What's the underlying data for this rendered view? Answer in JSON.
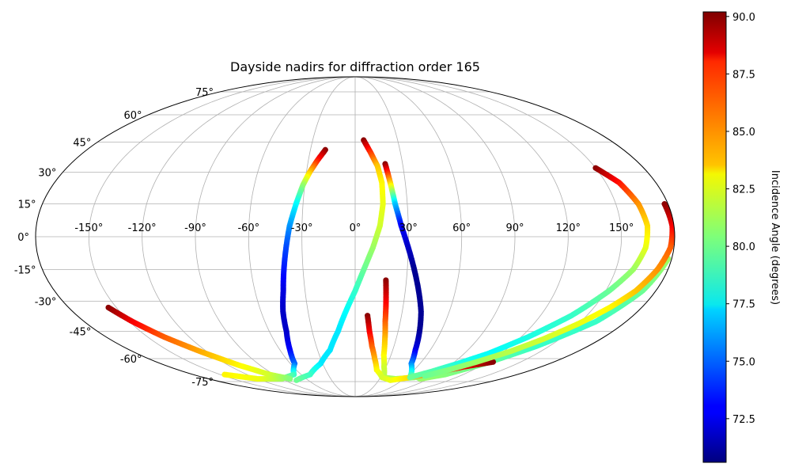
{
  "chart_data": {
    "type": "scatter",
    "projection": "mollweide",
    "title": "Dayside nadirs for diffraction order 165",
    "x_tick_labels": [
      "-150°",
      "-120°",
      "-90°",
      "-60°",
      "-30°",
      "0°",
      "30°",
      "60°",
      "90°",
      "120°",
      "150°"
    ],
    "x_tick_values": [
      -150,
      -120,
      -90,
      -60,
      -30,
      0,
      30,
      60,
      90,
      120,
      150
    ],
    "y_tick_labels": [
      "75°",
      "60°",
      "45°",
      "30°",
      "15°",
      "0°",
      "-15°",
      "-30°",
      "-45°",
      "-60°",
      "-75°"
    ],
    "y_tick_values": [
      75,
      60,
      45,
      30,
      15,
      0,
      -15,
      -30,
      -45,
      -60,
      -75
    ],
    "xlim": [
      -180,
      180
    ],
    "ylim": [
      -90,
      90
    ],
    "grid": true,
    "colormap": "jet",
    "colorbar": {
      "label": "Incidence Angle (degrees)",
      "range": [
        70.6,
        90.2
      ],
      "tick_values": [
        72.5,
        75.0,
        77.5,
        80.0,
        82.5,
        85.0,
        87.5,
        90.0
      ],
      "tick_labels": [
        "72.5",
        "75.0",
        "77.5",
        "80.0",
        "82.5",
        "85.0",
        "87.5",
        "90.0"
      ]
    },
    "series": [
      {
        "points": [
          {
            "lon": -20,
            "lat": 41,
            "value": 90
          },
          {
            "lon": -24,
            "lat": 36,
            "value": 87.5
          },
          {
            "lon": -28,
            "lat": 30,
            "value": 84
          },
          {
            "lon": -31,
            "lat": 24,
            "value": 81
          },
          {
            "lon": -34,
            "lat": 15,
            "value": 78
          },
          {
            "lon": -37,
            "lat": 5,
            "value": 76
          },
          {
            "lon": -39,
            "lat": -5,
            "value": 74.5
          },
          {
            "lon": -41,
            "lat": -15,
            "value": 73.5
          },
          {
            "lon": -43,
            "lat": -25,
            "value": 72.5
          },
          {
            "lon": -46,
            "lat": -35,
            "value": 72
          },
          {
            "lon": -48,
            "lat": -45,
            "value": 72
          },
          {
            "lon": -52,
            "lat": -55,
            "value": 73
          },
          {
            "lon": -56,
            "lat": -63,
            "value": 75
          },
          {
            "lon": -68,
            "lat": -70,
            "value": 79
          },
          {
            "lon": -90,
            "lat": -73,
            "value": 81
          },
          {
            "lon": -120,
            "lat": -73,
            "value": 82.5
          },
          {
            "lon": -145,
            "lat": -70,
            "value": 83
          }
        ]
      },
      {
        "points": [
          {
            "lon": 6,
            "lat": 46,
            "value": 90
          },
          {
            "lon": 10,
            "lat": 40,
            "value": 87
          },
          {
            "lon": 14,
            "lat": 33,
            "value": 84
          },
          {
            "lon": 16,
            "lat": 25,
            "value": 83
          },
          {
            "lon": 16,
            "lat": 15,
            "value": 82.5
          },
          {
            "lon": 14,
            "lat": 5,
            "value": 82
          },
          {
            "lon": 10,
            "lat": -5,
            "value": 81
          },
          {
            "lon": 5,
            "lat": -15,
            "value": 80
          },
          {
            "lon": 0,
            "lat": -25,
            "value": 79
          },
          {
            "lon": -6,
            "lat": -35,
            "value": 78
          },
          {
            "lon": -12,
            "lat": -45,
            "value": 77.5
          },
          {
            "lon": -20,
            "lat": -55,
            "value": 77.5
          },
          {
            "lon": -32,
            "lat": -63,
            "value": 77.5
          },
          {
            "lon": -50,
            "lat": -70,
            "value": 79
          },
          {
            "lon": -75,
            "lat": -74,
            "value": 80
          }
        ]
      },
      {
        "points": [
          {
            "lon": -155,
            "lat": -33,
            "value": 90
          },
          {
            "lon": -148,
            "lat": -40,
            "value": 88
          },
          {
            "lon": -138,
            "lat": -48,
            "value": 86
          },
          {
            "lon": -125,
            "lat": -56,
            "value": 84.5
          },
          {
            "lon": -110,
            "lat": -64,
            "value": 83
          },
          {
            "lon": -95,
            "lat": -70,
            "value": 82
          },
          {
            "lon": -80,
            "lat": -73,
            "value": 80.5
          }
        ]
      },
      {
        "points": [
          {
            "lon": 19,
            "lat": 34,
            "value": 90
          },
          {
            "lon": 21,
            "lat": 25,
            "value": 84
          },
          {
            "lon": 23,
            "lat": 15,
            "value": 77
          },
          {
            "lon": 26,
            "lat": 5,
            "value": 73
          },
          {
            "lon": 30,
            "lat": -5,
            "value": 72
          },
          {
            "lon": 34,
            "lat": -15,
            "value": 71
          },
          {
            "lon": 38,
            "lat": -25,
            "value": 71
          },
          {
            "lon": 42,
            "lat": -35,
            "value": 71
          },
          {
            "lon": 45,
            "lat": -45,
            "value": 71
          },
          {
            "lon": 48,
            "lat": -55,
            "value": 72.5
          },
          {
            "lon": 52,
            "lat": -63,
            "value": 75.5
          },
          {
            "lon": 62,
            "lat": -70,
            "value": 79
          },
          {
            "lon": 80,
            "lat": -73,
            "value": 81
          },
          {
            "lon": 100,
            "lat": -70,
            "value": 80.5
          },
          {
            "lon": 120,
            "lat": -63,
            "value": 80
          },
          {
            "lon": 140,
            "lat": -53,
            "value": 79
          },
          {
            "lon": 160,
            "lat": -40,
            "value": 79
          },
          {
            "lon": 172,
            "lat": -25,
            "value": 80
          },
          {
            "lon": 178,
            "lat": -10,
            "value": 81
          }
        ]
      },
      {
        "points": [
          {
            "lon": 18,
            "lat": -20,
            "value": 90
          },
          {
            "lon": 19,
            "lat": -30,
            "value": 88
          },
          {
            "lon": 20,
            "lat": -40,
            "value": 86
          },
          {
            "lon": 22,
            "lat": -50,
            "value": 84
          },
          {
            "lon": 24,
            "lat": -58,
            "value": 83
          },
          {
            "lon": 28,
            "lat": -65,
            "value": 82
          },
          {
            "lon": 34,
            "lat": -72,
            "value": 81.5
          },
          {
            "lon": 50,
            "lat": -73,
            "value": 81
          },
          {
            "lon": 70,
            "lat": -72,
            "value": 80.5
          },
          {
            "lon": 90,
            "lat": -68,
            "value": 80
          }
        ]
      },
      {
        "points": [
          {
            "lon": 8,
            "lat": -37,
            "value": 90
          },
          {
            "lon": 10,
            "lat": -45,
            "value": 88
          },
          {
            "lon": 13,
            "lat": -53,
            "value": 86
          },
          {
            "lon": 17,
            "lat": -60,
            "value": 84.5
          },
          {
            "lon": 22,
            "lat": -67,
            "value": 83
          },
          {
            "lon": 32,
            "lat": -72,
            "value": 82
          },
          {
            "lon": 45,
            "lat": -74,
            "value": 82.5
          },
          {
            "lon": 65,
            "lat": -72,
            "value": 83.5
          },
          {
            "lon": 85,
            "lat": -69,
            "value": 86
          },
          {
            "lon": 105,
            "lat": -65,
            "value": 88
          },
          {
            "lon": 125,
            "lat": -62,
            "value": 90
          }
        ]
      },
      {
        "points": [
          {
            "lon": 150,
            "lat": 32,
            "value": 90
          },
          {
            "lon": 158,
            "lat": 25,
            "value": 87.5
          },
          {
            "lon": 163,
            "lat": 15,
            "value": 85
          },
          {
            "lon": 165,
            "lat": 5,
            "value": 83.5
          },
          {
            "lon": 164,
            "lat": -5,
            "value": 82.5
          },
          {
            "lon": 160,
            "lat": -15,
            "value": 81
          },
          {
            "lon": 152,
            "lat": -25,
            "value": 80
          },
          {
            "lon": 140,
            "lat": -37,
            "value": 79
          },
          {
            "lon": 125,
            "lat": -48,
            "value": 78.5
          },
          {
            "lon": 110,
            "lat": -57,
            "value": 78
          },
          {
            "lon": 95,
            "lat": -63,
            "value": 78.5
          },
          {
            "lon": 80,
            "lat": -68,
            "value": 79.5
          },
          {
            "lon": 65,
            "lat": -72,
            "value": 80
          }
        ]
      },
      {
        "points": [
          {
            "lon": 178,
            "lat": 15,
            "value": 90
          },
          {
            "lon": 179,
            "lat": 5,
            "value": 88
          },
          {
            "lon": 178,
            "lat": -5,
            "value": 86
          },
          {
            "lon": 174,
            "lat": -15,
            "value": 85
          },
          {
            "lon": 168,
            "lat": -25,
            "value": 84
          },
          {
            "lon": 160,
            "lat": -33,
            "value": 83
          },
          {
            "lon": 150,
            "lat": -41,
            "value": 82.5
          },
          {
            "lon": 138,
            "lat": -49,
            "value": 82
          },
          {
            "lon": 125,
            "lat": -56,
            "value": 81.5
          },
          {
            "lon": 110,
            "lat": -62,
            "value": 81
          },
          {
            "lon": 95,
            "lat": -67,
            "value": 80.5
          },
          {
            "lon": 80,
            "lat": -71,
            "value": 80
          }
        ]
      }
    ]
  }
}
